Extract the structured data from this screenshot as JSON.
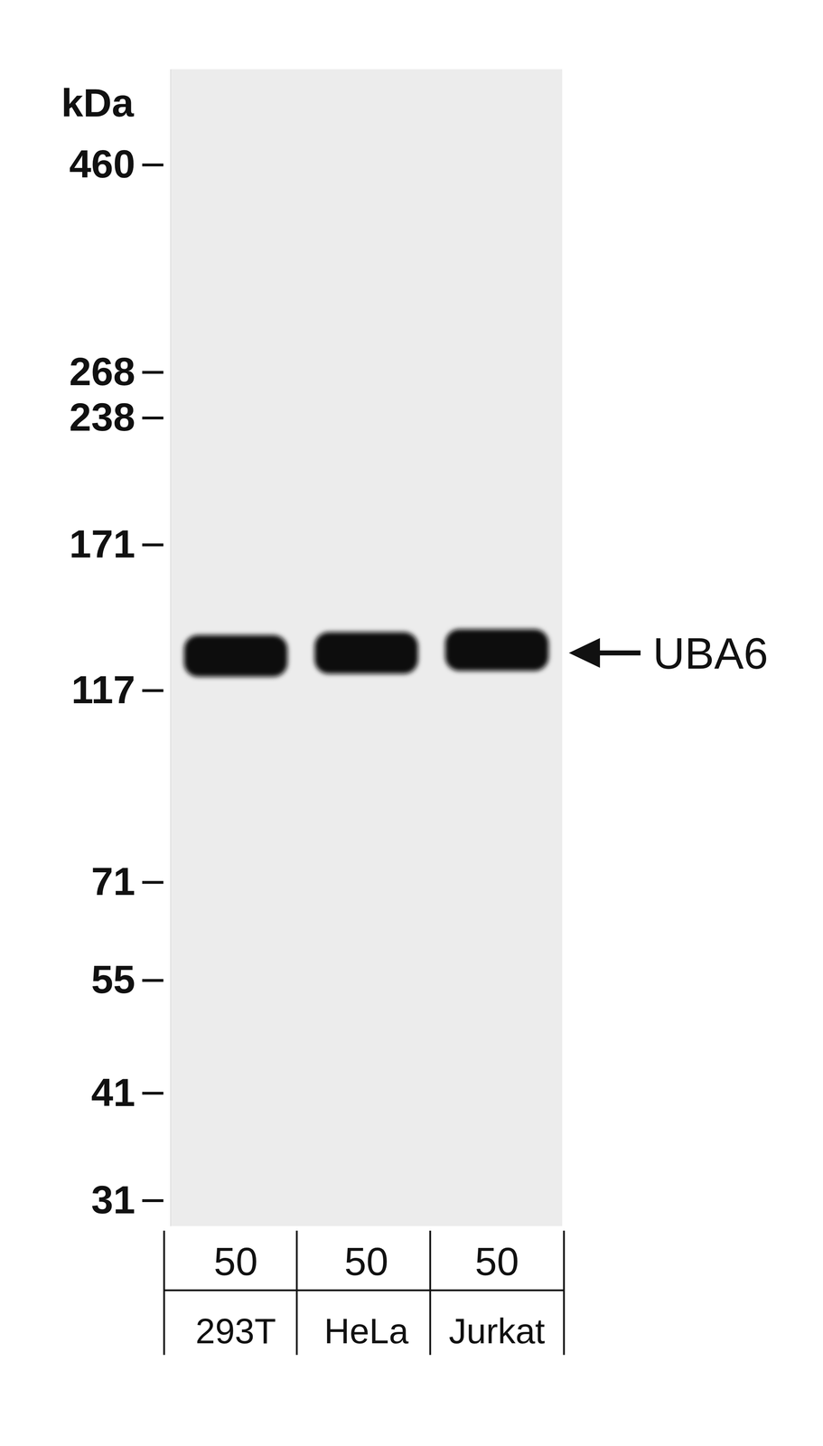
{
  "chart_data": {
    "type": "blot",
    "y_label": "kDa",
    "categories": [
      "293T",
      "HeLa",
      "Jurkat"
    ],
    "loads": [
      50,
      50,
      50
    ],
    "values": [
      128,
      129,
      130
    ],
    "annotation": "UBA6",
    "color": "#111111",
    "log": "y",
    "ylim": [
      29,
      590
    ],
    "yticks": [
      460,
      268,
      238,
      171,
      117,
      71,
      55,
      41,
      31
    ]
  }
}
